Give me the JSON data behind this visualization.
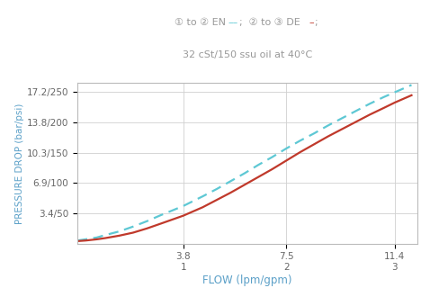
{
  "xlabel": "FLOW (lpm/gpm)",
  "ylabel": "PRESSURE DROP (bar/psi)",
  "xticks_positions": [
    3.8,
    7.5,
    11.4
  ],
  "ytick_labels": [
    "3.4/50",
    "6.9/100",
    "10.3/150",
    "13.8/200",
    "17.2/250"
  ],
  "ytick_positions": [
    50,
    100,
    150,
    200,
    250
  ],
  "xlim": [
    0,
    12.2
  ],
  "ylim": [
    0,
    265
  ],
  "color_EN": "#5ec8d4",
  "color_DE": "#c0392b",
  "background_color": "#ffffff",
  "grid_color": "#d0d0d0",
  "title_color": "#999999",
  "axis_label_color": "#5ba0c8",
  "en_x": [
    0.0,
    0.3,
    0.7,
    1.0,
    1.5,
    2.0,
    2.5,
    3.0,
    3.8,
    4.5,
    5.0,
    5.5,
    6.0,
    6.5,
    7.0,
    7.5,
    8.0,
    8.5,
    9.0,
    9.5,
    10.0,
    10.5,
    11.0,
    11.4,
    12.0
  ],
  "en_y": [
    5,
    7,
    10,
    14,
    20,
    28,
    37,
    47,
    62,
    78,
    90,
    103,
    116,
    130,
    143,
    157,
    170,
    182,
    195,
    207,
    219,
    231,
    242,
    250,
    262
  ],
  "de_x": [
    0.0,
    0.3,
    0.7,
    1.0,
    1.5,
    2.0,
    2.5,
    3.0,
    3.8,
    4.5,
    5.0,
    5.5,
    6.0,
    6.5,
    7.0,
    7.5,
    8.0,
    8.5,
    9.0,
    9.5,
    10.0,
    10.5,
    11.0,
    11.4,
    12.0
  ],
  "de_y": [
    4,
    5,
    7,
    9,
    13,
    18,
    25,
    33,
    46,
    60,
    72,
    84,
    97,
    110,
    123,
    137,
    151,
    164,
    177,
    189,
    201,
    213,
    224,
    233,
    245
  ]
}
